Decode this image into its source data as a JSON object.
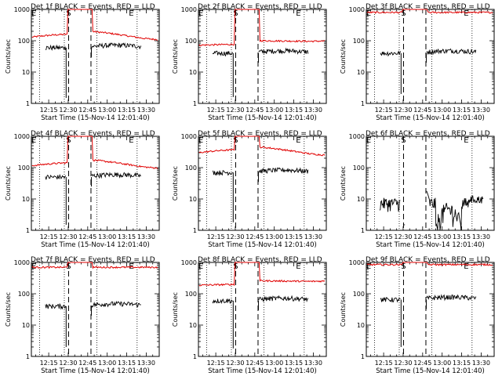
{
  "chart_data": [
    {
      "id": "1f",
      "type": "line",
      "title": "Det 1f BLACK = Events, RED = LLD",
      "ylabel": "Counts/sec",
      "xlabel": "Start Time (15-Nov-14 12:01:40)",
      "yscale": "log",
      "ylim": [
        1,
        1000
      ],
      "yticks": [
        "1",
        "10",
        "100",
        "1000"
      ],
      "xticks": [
        "12:15",
        "12:30",
        "12:45",
        "13:00",
        "13:15",
        "13:30"
      ],
      "markers": [
        "E",
        "S",
        "E"
      ],
      "series": [
        {
          "color": "#e00000",
          "baseline": 130,
          "peak": 1000,
          "gap_lo": 0,
          "trend": "hump"
        },
        {
          "color": "#000000",
          "baseline": 60,
          "gap": true,
          "dip": 1.5
        }
      ]
    },
    {
      "id": "2f",
      "type": "line",
      "title": "Det 2f BLACK = Events, RED = LLD",
      "ylabel": "Counts/sec",
      "xlabel": "Start Time (15-Nov-14 12:01:40)",
      "yscale": "log",
      "ylim": [
        1,
        1000
      ],
      "yticks": [
        "1",
        "10",
        "100",
        "1000"
      ],
      "xticks": [
        "12:15",
        "12:30",
        "12:45",
        "13:00",
        "13:15",
        "13:30"
      ],
      "markers": [
        "E",
        "S",
        "E"
      ],
      "series": [
        {
          "color": "#e00000",
          "baseline": 85,
          "peak": 1000,
          "trend": "rise"
        },
        {
          "color": "#000000",
          "baseline": 40,
          "gap": true,
          "dip": 1.6
        }
      ]
    },
    {
      "id": "3f",
      "type": "line",
      "title": "Det 3f BLACK = Events, RED = LLD",
      "ylabel": "Counts/sec",
      "xlabel": "Start Time (15-Nov-14 12:01:40)",
      "yscale": "log",
      "ylim": [
        1,
        1000
      ],
      "yticks": [
        "1",
        "10",
        "100",
        "1000"
      ],
      "xticks": [
        "12:15",
        "12:30",
        "12:45",
        "13:00",
        "13:15",
        "13:30"
      ],
      "markers": [
        "E",
        "S",
        "E"
      ],
      "series": [
        {
          "color": "#e00000",
          "baseline": 800,
          "peak": 1000,
          "trend": "flat"
        },
        {
          "color": "#000000",
          "baseline": 40,
          "gap": true,
          "dip": 2.0
        }
      ]
    },
    {
      "id": "4f",
      "type": "line",
      "title": "Det 4f BLACK = Events, RED = LLD",
      "ylabel": "Counts/sec",
      "xlabel": "Start Time (15-Nov-14 12:01:40)",
      "yscale": "log",
      "ylim": [
        1,
        1000
      ],
      "yticks": [
        "1",
        "10",
        "100",
        "1000"
      ],
      "xticks": [
        "12:15",
        "12:30",
        "12:45",
        "13:00",
        "13:15",
        "13:30"
      ],
      "markers": [
        "E",
        "S",
        "E"
      ],
      "series": [
        {
          "color": "#e00000",
          "baseline": 115,
          "peak": 1000,
          "trend": "hump"
        },
        {
          "color": "#000000",
          "baseline": 50,
          "gap": true,
          "dip": 1.5
        }
      ]
    },
    {
      "id": "5f",
      "type": "line",
      "title": "Det 5f BLACK = Events, RED = LLD",
      "ylabel": "Counts/sec",
      "xlabel": "Start Time (15-Nov-14 12:01:40)",
      "yscale": "log",
      "ylim": [
        1,
        1000
      ],
      "yticks": [
        "1",
        "10",
        "100",
        "1000"
      ],
      "xticks": [
        "12:15",
        "12:30",
        "12:45",
        "13:00",
        "13:15",
        "13:30"
      ],
      "markers": [
        "E",
        "S",
        "E"
      ],
      "series": [
        {
          "color": "#e00000",
          "baseline": 300,
          "peak": 1000,
          "trend": "hump"
        },
        {
          "color": "#000000",
          "baseline": 70,
          "gap": true,
          "dip": 1.8
        }
      ]
    },
    {
      "id": "6f",
      "type": "line",
      "title": "Det 6f BLACK = Events, RED = LLD",
      "ylabel": "Counts/sec",
      "xlabel": "Start Time (15-Nov-14 12:01:40)",
      "yscale": "log",
      "ylim": [
        1,
        1000
      ],
      "yticks": [
        "1",
        "10",
        "100",
        "1000"
      ],
      "xticks": [
        "12:15",
        "12:30",
        "12:45",
        "13:00",
        "13:15",
        "13:30"
      ],
      "markers": [
        "E",
        "S",
        "E"
      ],
      "series": [
        {
          "color": "#000000",
          "baseline": 7,
          "gap": true,
          "noisy": true
        }
      ]
    },
    {
      "id": "7f",
      "type": "line",
      "title": "Det 7f BLACK = Events, RED = LLD",
      "ylabel": "Counts/sec",
      "xlabel": "Start Time (15-Nov-14 12:01:40)",
      "yscale": "log",
      "ylim": [
        1,
        1000
      ],
      "yticks": [
        "1",
        "10",
        "100",
        "1000"
      ],
      "xticks": [
        "12:15",
        "12:30",
        "12:45",
        "13:00",
        "13:15",
        "13:30"
      ],
      "markers": [
        "E",
        "S",
        "E"
      ],
      "series": [
        {
          "color": "#e00000",
          "baseline": 700,
          "peak": 1000,
          "trend": "flat"
        },
        {
          "color": "#000000",
          "baseline": 40,
          "gap": true,
          "dip": 2.0
        }
      ]
    },
    {
      "id": "8f",
      "type": "line",
      "title": "Det 8f BLACK = Events, RED = LLD",
      "ylabel": "Counts/sec",
      "xlabel": "Start Time (15-Nov-14 12:01:40)",
      "yscale": "log",
      "ylim": [
        1,
        1000
      ],
      "yticks": [
        "1",
        "10",
        "100",
        "1000"
      ],
      "xticks": [
        "12:15",
        "12:30",
        "12:45",
        "13:00",
        "13:15",
        "13:30"
      ],
      "markers": [
        "E",
        "S",
        "E"
      ],
      "series": [
        {
          "color": "#e00000",
          "baseline": 220,
          "peak": 1000,
          "trend": "rise"
        },
        {
          "color": "#000000",
          "baseline": 60,
          "gap": true,
          "dip": 1.8
        }
      ]
    },
    {
      "id": "9f",
      "type": "line",
      "title": "Det 9f BLACK = Events, RED = LLD",
      "ylabel": "Counts/sec",
      "xlabel": "Start Time (15-Nov-14 12:01:40)",
      "yscale": "log",
      "ylim": [
        1,
        1000
      ],
      "yticks": [
        "1",
        "10",
        "100",
        "1000"
      ],
      "xticks": [
        "12:15",
        "12:30",
        "12:45",
        "13:00",
        "13:15",
        "13:30"
      ],
      "markers": [
        "E",
        "S",
        "E"
      ],
      "series": [
        {
          "color": "#e00000",
          "baseline": 850,
          "peak": 1000,
          "trend": "flat"
        },
        {
          "color": "#000000",
          "baseline": 65,
          "gap": true,
          "dip": 2.0
        }
      ]
    }
  ]
}
